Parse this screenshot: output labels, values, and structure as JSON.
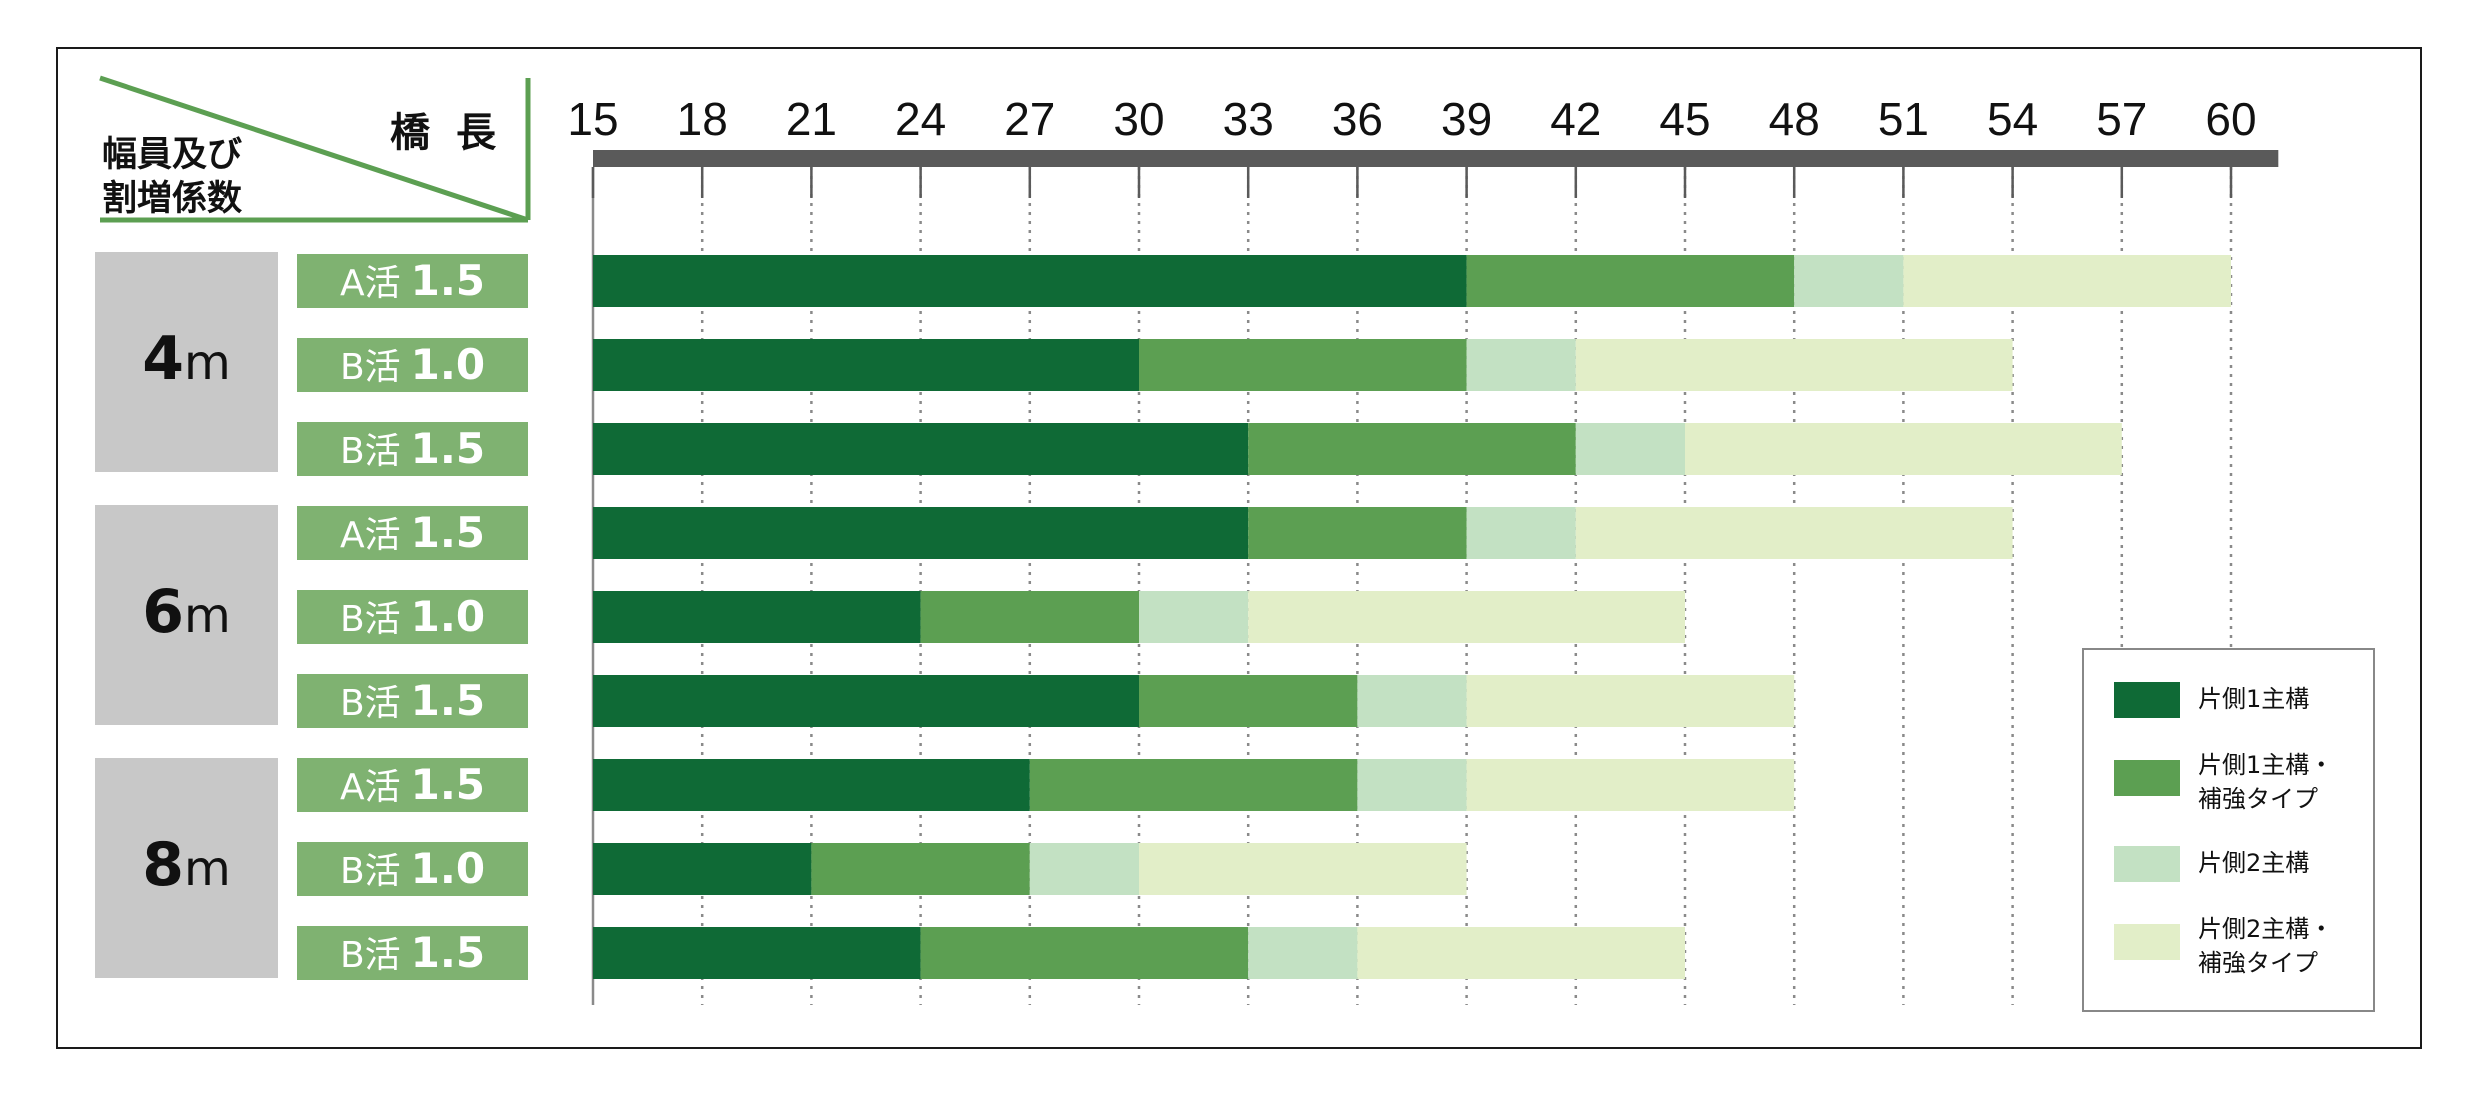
{
  "header": {
    "length_label": "橋長",
    "width_label": "幅員及び\n割増係数"
  },
  "colors": {
    "main1": "#0f6a36",
    "main1_reinforced": "#5c9f52",
    "main2": "#c3e1c3",
    "main2_reinforced": "#e2eec8",
    "label_bg": "#7fb271",
    "group_bg": "#c8c8c8",
    "axis_bar": "#5a5a5a",
    "header_line": "#5c9f52"
  },
  "groups": [
    {
      "num": "4",
      "unit": "m"
    },
    {
      "num": "6",
      "unit": "m"
    },
    {
      "num": "8",
      "unit": "m"
    }
  ],
  "legend": [
    {
      "key": "main1",
      "label": "片側1主構"
    },
    {
      "key": "main1_reinforced",
      "label": "片側1主構・\n補強タイプ"
    },
    {
      "key": "main2",
      "label": "片側2主構"
    },
    {
      "key": "main2_reinforced",
      "label": "片側2主構・\n補強タイプ"
    }
  ],
  "chart_data": {
    "type": "bar",
    "orientation": "horizontal-stacked-ranges",
    "x_axis": {
      "label": "橋長",
      "ticks": [
        15,
        18,
        21,
        24,
        27,
        30,
        33,
        36,
        39,
        42,
        45,
        48,
        51,
        54,
        57,
        60
      ],
      "range": [
        15,
        61.3
      ]
    },
    "series": [
      {
        "key": "main1",
        "name": "片側1主構"
      },
      {
        "key": "main1_reinforced",
        "name": "片側1主構・補強タイプ"
      },
      {
        "key": "main2",
        "name": "片側2主構"
      },
      {
        "key": "main2_reinforced",
        "name": "片側2主構・補強タイプ"
      }
    ],
    "rows": [
      {
        "group": "4m",
        "cls": "A活",
        "coef": "1.5",
        "ends": [
          39,
          48,
          51,
          60
        ]
      },
      {
        "group": "4m",
        "cls": "B活",
        "coef": "1.0",
        "ends": [
          30,
          39,
          42,
          54
        ]
      },
      {
        "group": "4m",
        "cls": "B活",
        "coef": "1.5",
        "ends": [
          33,
          42,
          45,
          57
        ]
      },
      {
        "group": "6m",
        "cls": "A活",
        "coef": "1.5",
        "ends": [
          33,
          39,
          42,
          54
        ]
      },
      {
        "group": "6m",
        "cls": "B活",
        "coef": "1.0",
        "ends": [
          24,
          30,
          33,
          45
        ]
      },
      {
        "group": "6m",
        "cls": "B活",
        "coef": "1.5",
        "ends": [
          30,
          36,
          39,
          48
        ]
      },
      {
        "group": "8m",
        "cls": "A活",
        "coef": "1.5",
        "ends": [
          27,
          36,
          39,
          48
        ]
      },
      {
        "group": "8m",
        "cls": "B活",
        "coef": "1.0",
        "ends": [
          21,
          27,
          30,
          39
        ]
      },
      {
        "group": "8m",
        "cls": "B活",
        "coef": "1.5",
        "ends": [
          24,
          33,
          36,
          45
        ]
      }
    ],
    "grid": true,
    "legend_position": "bottom-right"
  }
}
